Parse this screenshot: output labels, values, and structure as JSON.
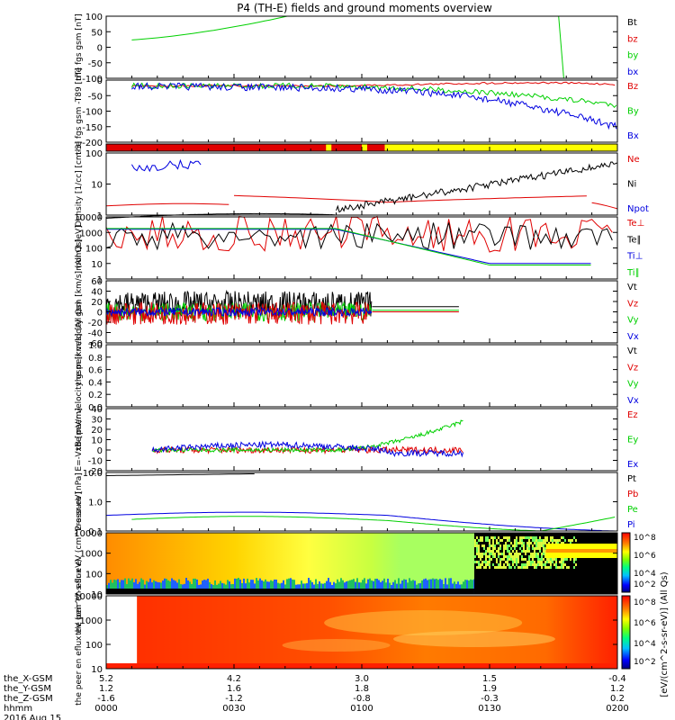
{
  "title": "P4 (TH-E) fields and ground moments overview",
  "colors": {
    "black": "#000000",
    "red": "#e00000",
    "green": "#00d000",
    "blue": "#0000e0",
    "yellow": "#ffff00",
    "orange": "#ff9900"
  },
  "xaxis": {
    "rows": [
      {
        "label": "the_X-GSM",
        "values": [
          "5.2",
          "4.2",
          "3.0",
          "1.5",
          "-0.4"
        ]
      },
      {
        "label": "the_Y-GSM",
        "values": [
          "1.2",
          "1.6",
          "1.8",
          "1.9",
          "1.2"
        ]
      },
      {
        "label": "the_Z-GSM",
        "values": [
          "-1.6",
          "-1.2",
          "-0.8",
          "-0.3",
          "0.2"
        ]
      },
      {
        "label": "hhmm",
        "values": [
          "0000",
          "0030",
          "0100",
          "0130",
          "0200"
        ]
      }
    ],
    "date": "2016 Aug 15"
  },
  "colorbar": {
    "ticks": [
      "10^8",
      "10^6",
      "10^4",
      "10^2"
    ],
    "label": "[eV/(cm^2-s-sr-eV)] (All Qs)"
  },
  "chart_data": [
    {
      "type": "line",
      "name": "fgs-gsm",
      "ylabel": "the fgs gsm [nT]",
      "ylim": [
        -100,
        100
      ],
      "yticks": [
        "100",
        "50",
        "0",
        "-50",
        "-100"
      ],
      "series": [
        {
          "name": "Bt",
          "color": "black"
        },
        {
          "name": "bz",
          "color": "red"
        },
        {
          "name": "by",
          "color": "green"
        },
        {
          "name": "bx",
          "color": "blue"
        }
      ]
    },
    {
      "type": "line",
      "name": "fgs-gsm-t89",
      "ylabel": "the fgs gsm -T89 [nT]",
      "ylim": [
        -220,
        20
      ],
      "yticks": [
        "0",
        "-50",
        "-100",
        "-150",
        "-200"
      ],
      "series": [
        {
          "name": "Bz",
          "color": "red"
        },
        {
          "name": "By",
          "color": "green"
        },
        {
          "name": "Bx",
          "color": "blue"
        }
      ]
    },
    {
      "type": "bar",
      "name": "mode-bar"
    },
    {
      "type": "line",
      "name": "density",
      "ylabel": "Density [1/cc] [cm-3]",
      "log": true,
      "yticks": [
        "100",
        "10",
        "1"
      ],
      "series": [
        {
          "name": "Ne",
          "color": "red"
        },
        {
          "name": "Ni",
          "color": "black"
        },
        {
          "name": "Npot",
          "color": "blue"
        }
      ]
    },
    {
      "type": "line",
      "name": "temperature",
      "ylabel": "mom3 [eV]",
      "log": true,
      "yticks": [
        "10000",
        "1000",
        "100",
        "10",
        "1"
      ],
      "series": [
        {
          "name": "Te⊥",
          "color": "red"
        },
        {
          "name": "Te∥",
          "color": "black"
        },
        {
          "name": "Ti⊥",
          "color": "blue"
        },
        {
          "name": "Ti∥",
          "color": "green"
        }
      ]
    },
    {
      "type": "line",
      "name": "peir-velocity",
      "ylabel": "the peir velocity gsm [km/s] (All Qs)",
      "ylim": [
        -60,
        60
      ],
      "yticks": [
        "60",
        "40",
        "20",
        "0",
        "-20",
        "-40",
        "-60"
      ],
      "series": [
        {
          "name": "Vt",
          "color": "black"
        },
        {
          "name": "Vz",
          "color": "red"
        },
        {
          "name": "Vy",
          "color": "green"
        },
        {
          "name": "Vx",
          "color": "blue"
        }
      ]
    },
    {
      "type": "line",
      "name": "peer-velocity",
      "ylabel": "the peer velocity gsm [km/s] (All Qs)",
      "ylim": [
        0,
        1
      ],
      "yticks": [
        "1.0",
        "0.8",
        "0.6",
        "0.4",
        "0.2",
        "0.0"
      ],
      "series": [
        {
          "name": "Vt",
          "color": "black"
        },
        {
          "name": "Vz",
          "color": "red"
        },
        {
          "name": "Vy",
          "color": "green"
        },
        {
          "name": "Vx",
          "color": "blue"
        }
      ]
    },
    {
      "type": "line",
      "name": "efield",
      "ylabel": "E=-VxB [mV/m]",
      "ylim": [
        -20,
        40
      ],
      "yticks": [
        "40",
        "30",
        "20",
        "10",
        "0",
        "-10",
        "-20"
      ],
      "series": [
        {
          "name": "Ez",
          "color": "red"
        },
        {
          "name": "Ey",
          "color": "green"
        },
        {
          "name": "Ex",
          "color": "blue"
        }
      ]
    },
    {
      "type": "line",
      "name": "pressure",
      "ylabel": "Pressure [nPa]",
      "log": true,
      "yticks": [
        "10.0",
        "1.0",
        "0.1"
      ],
      "series": [
        {
          "name": "Pt",
          "color": "black"
        },
        {
          "name": "Pb",
          "color": "red"
        },
        {
          "name": "Pe",
          "color": "green"
        },
        {
          "name": "Pi",
          "color": "blue"
        }
      ]
    },
    {
      "type": "heatmap",
      "name": "peir-spectrogram",
      "ylabel": "the peir en eflux eV (cm^2-s-sr-eV)",
      "yticks": [
        "10000",
        "1000",
        "100",
        "10"
      ]
    },
    {
      "type": "heatmap",
      "name": "peer-spectrogram",
      "ylabel": "the peer en eflux eV (cm^2-s-sr-eV)",
      "yticks": [
        "10000",
        "1000",
        "100",
        "10"
      ]
    }
  ]
}
